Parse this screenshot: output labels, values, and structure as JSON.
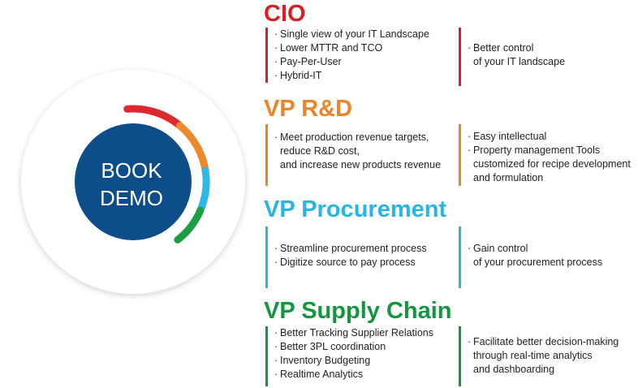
{
  "badge": {
    "line1": "BOOK",
    "line2": "DEMO",
    "colors": {
      "circle": "#0d4d8a",
      "text": "#ffffff",
      "ring_red": "#dd2a2f",
      "ring_orange": "#ec8a2b",
      "ring_blue": "#2fb7e6",
      "ring_green": "#1d9d46"
    }
  },
  "roles": [
    {
      "title": "CIO",
      "color": "#d81f26",
      "left": [
        "Single view of your IT Landscape",
        "Lower MTTR and TCO",
        "Pay-Per-User",
        "Hybrid-IT"
      ],
      "right": {
        "bullet": "Better control",
        "cont": [
          "of your IT landscape"
        ]
      }
    },
    {
      "title": "VP R&D",
      "color": "#ea8428",
      "left": {
        "bullet": "Meet production revenue targets,",
        "cont": [
          "reduce R&D cost,",
          "and increase new products revenue"
        ]
      },
      "right": {
        "bullets": [
          "Easy intellectual",
          "Property management Tools"
        ],
        "cont": [
          "customized for recipe development",
          "and formulation"
        ]
      }
    },
    {
      "title": "VP Procurement",
      "color": "#29b5e3",
      "left": [
        "Streamline procurement process",
        "Digitize source to pay process"
      ],
      "right": {
        "bullet": "Gain control",
        "cont": [
          "of your procurement process"
        ]
      }
    },
    {
      "title": "VP Supply Chain",
      "color": "#13963f",
      "left": [
        "Better Tracking Supplier Relations",
        "Better 3PL coordination",
        "Inventory Budgeting",
        "Realtime Analytics"
      ],
      "right": {
        "bullet": "Facilitate better decision-making",
        "cont": [
          "through real-time analytics",
          "and dashboarding"
        ]
      }
    }
  ]
}
